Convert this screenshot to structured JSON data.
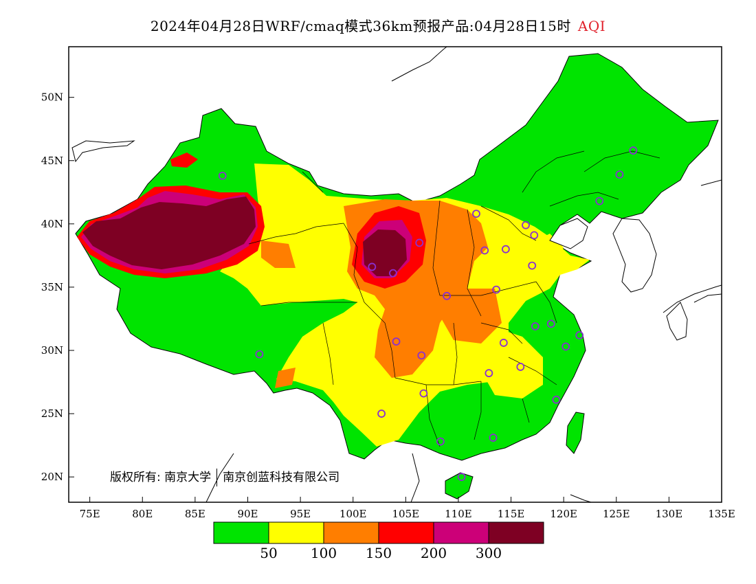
{
  "title": {
    "main": "2024年04月28日WRF/cmaq模式36km预报产品:04月28日15时",
    "product": "AQI",
    "product_color": "#e0202a"
  },
  "copyright": {
    "prefix": "版权所有:",
    "org1": "南京大学",
    "org2": "南京创蓝科技有限公司"
  },
  "map": {
    "projection": "lon-lat",
    "lon_range": [
      73,
      135
    ],
    "lat_range": [
      18,
      54
    ],
    "lon_ticks": [
      "75E",
      "80E",
      "85E",
      "90E",
      "95E",
      "100E",
      "105E",
      "110E",
      "115E",
      "120E",
      "125E",
      "130E",
      "135E"
    ],
    "lon_values": [
      75,
      80,
      85,
      90,
      95,
      100,
      105,
      110,
      115,
      120,
      125,
      130,
      135
    ],
    "lat_ticks": [
      "20N",
      "25N",
      "30N",
      "35N",
      "40N",
      "45N",
      "50N"
    ],
    "lat_values": [
      20,
      25,
      30,
      35,
      40,
      45,
      50
    ],
    "station_marker_color": "#8a30d0",
    "stations": [
      [
        87.6,
        43.8
      ],
      [
        91.1,
        29.7
      ],
      [
        101.8,
        36.6
      ],
      [
        103.8,
        36.1
      ],
      [
        106.3,
        38.5
      ],
      [
        111.7,
        40.8
      ],
      [
        112.5,
        37.9
      ],
      [
        114.5,
        38.0
      ],
      [
        116.4,
        39.9
      ],
      [
        117.2,
        39.1
      ],
      [
        117.0,
        36.7
      ],
      [
        113.6,
        34.8
      ],
      [
        108.9,
        34.3
      ],
      [
        104.1,
        30.7
      ],
      [
        106.5,
        29.6
      ],
      [
        106.7,
        26.6
      ],
      [
        102.7,
        25.0
      ],
      [
        108.3,
        22.8
      ],
      [
        110.3,
        20.0
      ],
      [
        113.3,
        23.1
      ],
      [
        112.9,
        28.2
      ],
      [
        114.3,
        30.6
      ],
      [
        115.9,
        28.7
      ],
      [
        117.3,
        31.9
      ],
      [
        118.8,
        32.1
      ],
      [
        120.2,
        30.3
      ],
      [
        121.5,
        31.2
      ],
      [
        119.3,
        26.1
      ],
      [
        123.4,
        41.8
      ],
      [
        125.3,
        43.9
      ],
      [
        126.6,
        45.8
      ]
    ]
  },
  "legend": {
    "colors": [
      "#00e400",
      "#ffff00",
      "#ff7e00",
      "#ff0000",
      "#cc0078",
      "#7e0023"
    ],
    "labels": [
      "50",
      "100",
      "150",
      "200",
      "300"
    ]
  }
}
